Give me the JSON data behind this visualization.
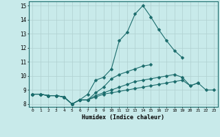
{
  "title": "",
  "xlabel": "Humidex (Indice chaleur)",
  "bg_color": "#c8eaea",
  "grid_color": "#afd0d0",
  "line_color": "#1a6b6b",
  "xlim": [
    -0.5,
    23.5
  ],
  "ylim": [
    7.8,
    15.3
  ],
  "xticks": [
    0,
    1,
    2,
    3,
    4,
    5,
    6,
    7,
    8,
    9,
    10,
    11,
    12,
    13,
    14,
    15,
    16,
    17,
    18,
    19,
    20,
    21,
    22,
    23
  ],
  "yticks": [
    8,
    9,
    10,
    11,
    12,
    13,
    14,
    15
  ],
  "line1_y": [
    8.7,
    8.7,
    8.6,
    8.6,
    8.5,
    8.0,
    8.3,
    8.7,
    9.7,
    9.9,
    10.5,
    12.5,
    13.1,
    14.4,
    15.0,
    14.2,
    13.3,
    12.5,
    11.8,
    11.3,
    null,
    null,
    null,
    null
  ],
  "line2_y": [
    8.7,
    8.7,
    8.6,
    8.6,
    8.5,
    8.0,
    8.3,
    8.3,
    8.8,
    9.2,
    9.8,
    10.1,
    10.3,
    10.5,
    10.7,
    10.8,
    null,
    null,
    null,
    null,
    null,
    null,
    null,
    null
  ],
  "line3_y": [
    8.7,
    8.7,
    8.6,
    8.6,
    8.5,
    8.0,
    8.3,
    8.3,
    8.6,
    8.8,
    9.0,
    9.2,
    9.4,
    9.6,
    9.7,
    9.8,
    9.9,
    10.0,
    10.1,
    9.9,
    9.3,
    9.5,
    9.0,
    9.0
  ],
  "line4_y": [
    8.7,
    8.7,
    8.6,
    8.6,
    8.5,
    8.0,
    8.3,
    8.3,
    8.5,
    8.7,
    8.8,
    8.9,
    9.0,
    9.1,
    9.2,
    9.3,
    9.4,
    9.5,
    9.6,
    9.7,
    9.3,
    9.5,
    null,
    null
  ]
}
